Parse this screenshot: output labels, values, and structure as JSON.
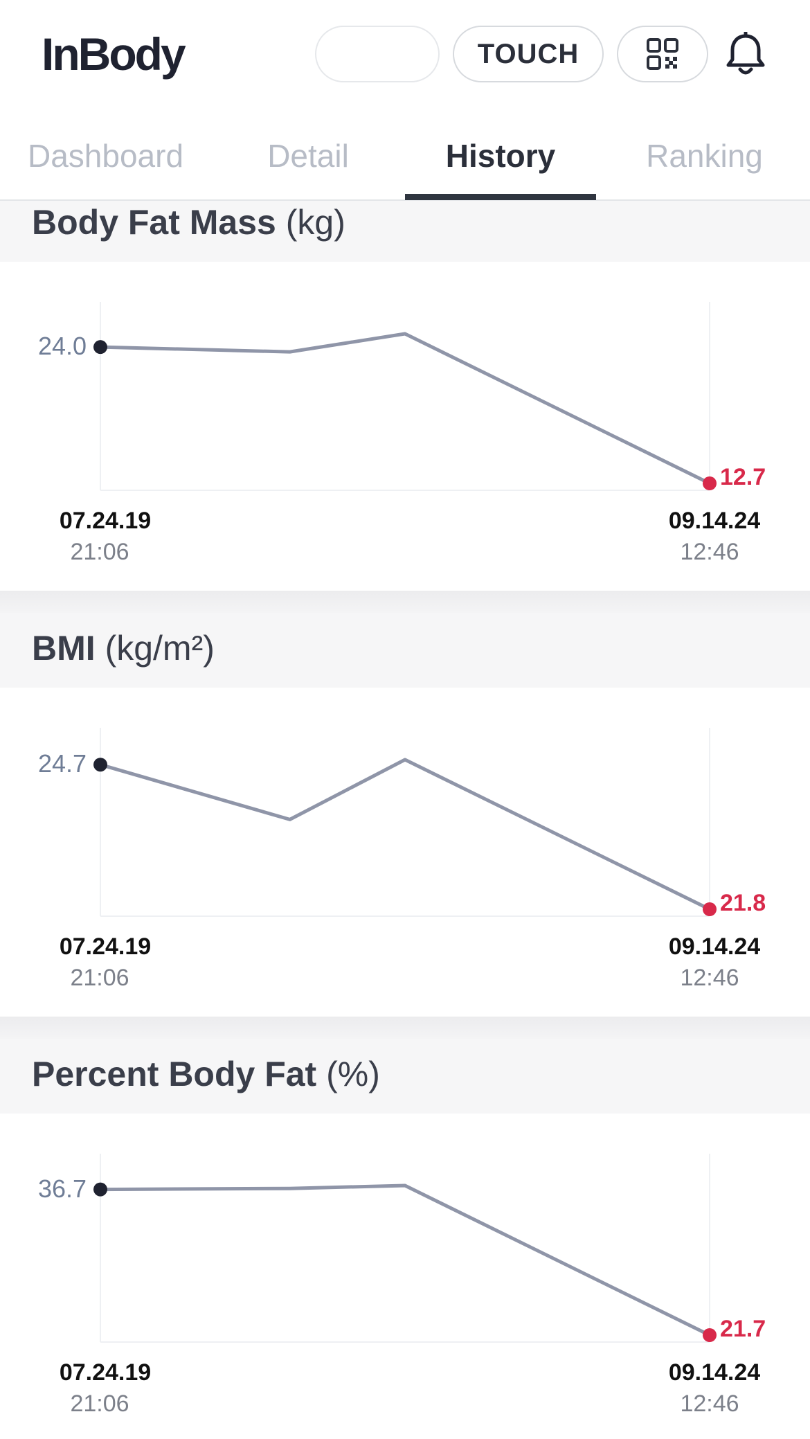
{
  "header": {
    "logo_text": "InBody",
    "blank_pill_label": "",
    "touch_label": "TOUCH",
    "qr_icon": "qr-code-icon",
    "bell_icon": "bell-icon"
  },
  "tabs": [
    {
      "label": "Dashboard",
      "active": false
    },
    {
      "label": "Detail",
      "active": false
    },
    {
      "label": "History",
      "active": true
    },
    {
      "label": "Ranking",
      "active": false
    }
  ],
  "colors": {
    "line": "#8f95a8",
    "start_dot": "#1f2230",
    "end_dot": "#d8294a",
    "active_tab": "#2f3540"
  },
  "charts": [
    {
      "name": "Body Fat Mass",
      "unit": "(kg)",
      "start_label": "24.0",
      "end_label": "12.7",
      "start_date": "07.24.19",
      "start_time": "21:06",
      "end_date": "09.14.24",
      "end_time": "12:46"
    },
    {
      "name": "BMI",
      "unit": "(kg/m²)",
      "start_label": "24.7",
      "end_label": "21.8",
      "start_date": "07.24.19",
      "start_time": "21:06",
      "end_date": "09.14.24",
      "end_time": "12:46"
    },
    {
      "name": "Percent Body Fat",
      "unit": "(%)",
      "start_label": "36.7",
      "end_label": "21.7",
      "start_date": "07.24.19",
      "start_time": "21:06",
      "end_date": "09.14.24",
      "end_time": "12:46"
    }
  ],
  "chart_data": [
    {
      "type": "line",
      "title": "Body Fat Mass (kg)",
      "x": [
        "07.24.19 21:06",
        "",
        "",
        "09.14.24 12:46"
      ],
      "values": [
        24.0,
        23.6,
        25.1,
        12.7
      ]
    },
    {
      "type": "line",
      "title": "BMI (kg/m²)",
      "x": [
        "07.24.19 21:06",
        "",
        "",
        "09.14.24 12:46"
      ],
      "values": [
        24.7,
        23.6,
        24.8,
        21.8
      ]
    },
    {
      "type": "line",
      "title": "Percent Body Fat (%)",
      "x": [
        "07.24.19 21:06",
        "",
        "",
        "09.14.24 12:46"
      ],
      "values": [
        36.7,
        36.8,
        37.1,
        21.7
      ]
    }
  ]
}
